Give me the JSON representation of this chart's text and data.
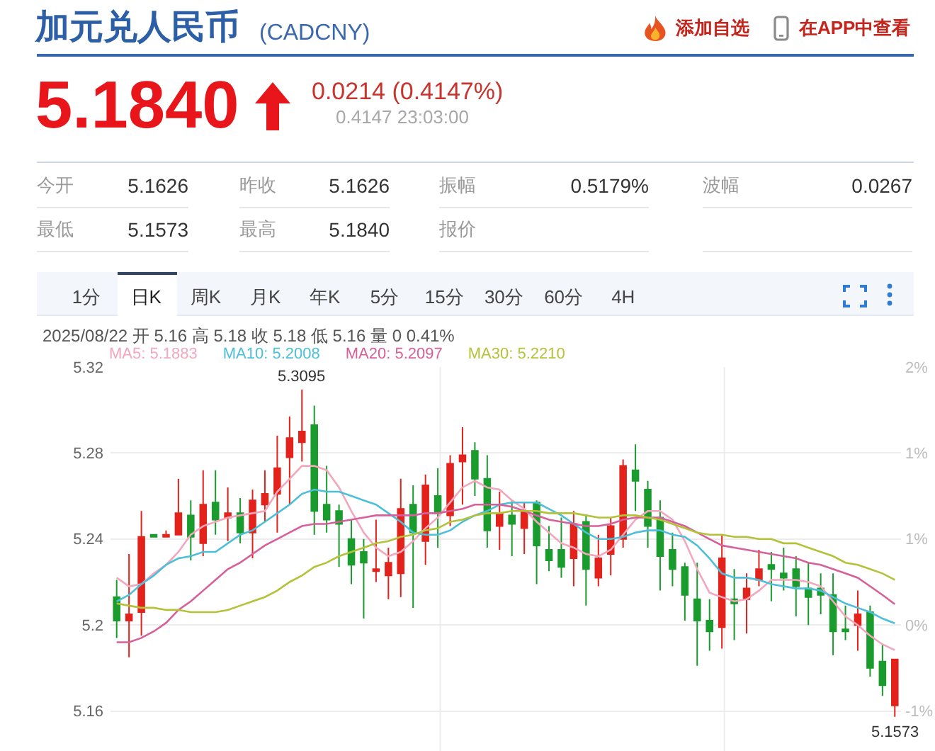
{
  "chart_data": [
    {
      "type": "other",
      "title": "加元兑人民币",
      "subtitle": "(CADCNY)",
      "annotations": [
        "添加自选",
        "在APP中查看",
        "5.1840",
        "0.0214 (0.4147%)",
        "0.4147 23:03:00",
        "今开",
        "5.1626",
        "昨收",
        "5.1626",
        "振幅",
        "0.5179%",
        "波幅",
        "0.0267",
        "最低",
        "5.1573",
        "最高",
        "5.1840",
        "报价",
        "1分",
        "日K",
        "周K",
        "月K",
        "年K",
        "5分",
        "15分",
        "30分",
        "60分",
        "4H"
      ]
    },
    {
      "type": "candlestick",
      "subtitle": "2025/08/22 开 5.16 高 5.18 收 5.18 低 5.16 量 0 0.41%",
      "categories": [
        null,
        null,
        null,
        null,
        null,
        null,
        null,
        null,
        null,
        null,
        null,
        null,
        null,
        null,
        null,
        null,
        null,
        null,
        null,
        null,
        null,
        null,
        null,
        null,
        null,
        null,
        null,
        null,
        null,
        null,
        null,
        null,
        null,
        null,
        null,
        null,
        null,
        null,
        null,
        null,
        null,
        null,
        null,
        null,
        null,
        null,
        null,
        null,
        null,
        null,
        null,
        null,
        null,
        null,
        null,
        null,
        null,
        null,
        null,
        null,
        null,
        null,
        null,
        null
      ],
      "ohlc": [
        [
          5.213,
          5.221,
          5.194,
          5.202
        ],
        [
          5.202,
          5.233,
          5.185,
          5.205
        ],
        [
          5.206,
          5.253,
          5.195,
          5.241
        ],
        [
          5.242,
          5.242,
          5.241,
          5.241
        ],
        [
          5.241,
          5.244,
          5.241,
          5.242
        ],
        [
          5.242,
          5.268,
          5.242,
          5.252
        ],
        [
          5.251,
          5.258,
          5.23,
          5.241
        ],
        [
          5.238,
          5.272,
          5.232,
          5.256
        ],
        [
          5.257,
          5.272,
          5.242,
          5.249
        ],
        [
          5.25,
          5.264,
          5.239,
          5.252
        ],
        [
          5.252,
          5.259,
          5.238,
          5.243
        ],
        [
          5.243,
          5.263,
          5.231,
          5.258
        ],
        [
          5.256,
          5.272,
          5.248,
          5.261
        ],
        [
          5.261,
          5.288,
          5.243,
          5.273
        ],
        [
          5.278,
          5.297,
          5.256,
          5.287
        ],
        [
          5.285,
          5.3095,
          5.276,
          5.29
        ],
        [
          5.293,
          5.302,
          5.242,
          5.253
        ],
        [
          5.256,
          5.274,
          5.243,
          5.249
        ],
        [
          5.253,
          5.256,
          5.227,
          5.247
        ],
        [
          5.24,
          5.249,
          5.219,
          5.228
        ],
        [
          5.234,
          5.24,
          5.203,
          5.229
        ],
        [
          5.225,
          5.249,
          5.22,
          5.226
        ],
        [
          5.223,
          5.236,
          5.212,
          5.229
        ],
        [
          5.224,
          5.268,
          5.213,
          5.254
        ],
        [
          5.256,
          5.265,
          5.208,
          5.243
        ],
        [
          5.239,
          5.27,
          5.228,
          5.265
        ],
        [
          5.26,
          5.273,
          5.236,
          5.252
        ],
        [
          5.251,
          5.279,
          5.246,
          5.275
        ],
        [
          5.276,
          5.292,
          5.256,
          5.279
        ],
        [
          5.281,
          5.285,
          5.26,
          5.268
        ],
        [
          5.268,
          5.279,
          5.236,
          5.244
        ],
        [
          5.246,
          5.262,
          5.235,
          5.252
        ],
        [
          5.251,
          5.258,
          5.232,
          5.247
        ],
        [
          5.245,
          5.257,
          5.233,
          5.253
        ],
        [
          5.257,
          5.258,
          5.219,
          5.237
        ],
        [
          5.235,
          5.246,
          5.225,
          5.23
        ],
        [
          5.235,
          5.25,
          5.222,
          5.227
        ],
        [
          5.231,
          5.253,
          5.218,
          5.247
        ],
        [
          5.248,
          5.251,
          5.209,
          5.226
        ],
        [
          5.222,
          5.242,
          5.218,
          5.231
        ],
        [
          5.233,
          5.25,
          5.223,
          5.246
        ],
        [
          5.24,
          5.277,
          5.236,
          5.274
        ],
        [
          5.272,
          5.284,
          5.253,
          5.267
        ],
        [
          5.263,
          5.267,
          5.236,
          5.246
        ],
        [
          5.25,
          5.258,
          5.216,
          5.232
        ],
        [
          5.235,
          5.243,
          5.218,
          5.226
        ],
        [
          5.227,
          5.229,
          5.202,
          5.214
        ],
        [
          5.212,
          5.229,
          5.181,
          5.202
        ],
        [
          5.202,
          5.212,
          5.188,
          5.197
        ],
        [
          5.199,
          5.242,
          5.189,
          5.231
        ],
        [
          5.212,
          5.226,
          5.193,
          5.21
        ],
        [
          5.212,
          5.224,
          5.196,
          5.217
        ],
        [
          5.221,
          5.235,
          5.218,
          5.226
        ],
        [
          5.228,
          5.234,
          5.211,
          5.226
        ],
        [
          5.224,
          5.236,
          5.216,
          5.222
        ],
        [
          5.226,
          5.232,
          5.204,
          5.218
        ],
        [
          5.217,
          5.229,
          5.2,
          5.213
        ],
        [
          5.217,
          5.224,
          5.205,
          5.214
        ],
        [
          5.214,
          5.224,
          5.186,
          5.197
        ],
        [
          5.198,
          5.209,
          5.193,
          5.197
        ],
        [
          5.2,
          5.216,
          5.188,
          5.205
        ],
        [
          5.206,
          5.209,
          5.176,
          5.18
        ],
        [
          5.183,
          5.191,
          5.167,
          5.172
        ],
        [
          5.1626,
          5.184,
          5.1573,
          5.184
        ]
      ],
      "colors": [
        "#199c2d",
        "#e3221b",
        "#e3221b",
        "#199c2d",
        "#e3221b",
        "#e3221b",
        "#199c2d",
        "#e3221b",
        "#199c2d",
        "#e3221b",
        "#199c2d",
        "#e3221b",
        "#e3221b",
        "#e3221b",
        "#e3221b",
        "#e3221b",
        "#199c2d",
        "#199c2d",
        "#199c2d",
        "#199c2d",
        "#199c2d",
        "#e3221b",
        "#e3221b",
        "#e3221b",
        "#199c2d",
        "#e3221b",
        "#199c2d",
        "#e3221b",
        "#e3221b",
        "#199c2d",
        "#199c2d",
        "#e3221b",
        "#199c2d",
        "#e3221b",
        "#199c2d",
        "#199c2d",
        "#199c2d",
        "#e3221b",
        "#199c2d",
        "#e3221b",
        "#e3221b",
        "#e3221b",
        "#199c2d",
        "#199c2d",
        "#199c2d",
        "#199c2d",
        "#199c2d",
        "#199c2d",
        "#199c2d",
        "#e3221b",
        "#199c2d",
        "#e3221b",
        "#e3221b",
        "#199c2d",
        "#199c2d",
        "#199c2d",
        "#199c2d",
        "#199c2d",
        "#199c2d",
        "#199c2d",
        "#e3221b",
        "#199c2d",
        "#199c2d",
        "#e3221b"
      ],
      "series": [
        {
          "name": "MA5: 5.1883",
          "type": "line",
          "color": "#f2a7bd",
          "values": [
            5.222,
            5.218,
            5.219,
            5.224,
            5.228,
            5.234,
            5.242,
            5.246,
            5.248,
            5.25,
            5.251,
            5.252,
            5.253,
            5.262,
            5.268,
            5.274,
            5.274,
            5.272,
            5.264,
            5.253,
            5.243,
            5.236,
            5.232,
            5.234,
            5.239,
            5.245,
            5.25,
            5.257,
            5.264,
            5.267,
            5.264,
            5.263,
            5.258,
            5.254,
            5.248,
            5.243,
            5.238,
            5.236,
            5.233,
            5.232,
            5.235,
            5.242,
            5.249,
            5.253,
            5.253,
            5.249,
            5.239,
            5.226,
            5.215,
            5.213,
            5.211,
            5.212,
            5.216,
            5.221,
            5.221,
            5.221,
            5.22,
            5.218,
            5.211,
            5.204,
            5.2,
            5.195,
            5.191,
            5.1883
          ]
        },
        {
          "name": "MA10: 5.2008",
          "type": "line",
          "color": "#4dbfd8",
          "values": [
            5.211,
            5.214,
            5.219,
            5.223,
            5.228,
            5.231,
            5.232,
            5.234,
            5.234,
            5.238,
            5.242,
            5.244,
            5.248,
            5.252,
            5.256,
            5.261,
            5.263,
            5.262,
            5.262,
            5.26,
            5.258,
            5.256,
            5.252,
            5.248,
            5.243,
            5.242,
            5.242,
            5.244,
            5.248,
            5.251,
            5.253,
            5.256,
            5.257,
            5.257,
            5.257,
            5.254,
            5.251,
            5.247,
            5.243,
            5.24,
            5.24,
            5.241,
            5.243,
            5.244,
            5.244,
            5.242,
            5.241,
            5.237,
            5.231,
            5.224,
            5.222,
            5.222,
            5.221,
            5.219,
            5.218,
            5.217,
            5.217,
            5.216,
            5.213,
            5.21,
            5.208,
            5.206,
            5.203,
            5.2008
          ]
        },
        {
          "name": "MA20: 5.2097",
          "type": "line",
          "color": "#d6609a",
          "values": [
            5.192,
            5.192,
            5.194,
            5.197,
            5.201,
            5.207,
            5.211,
            5.216,
            5.221,
            5.226,
            5.229,
            5.233,
            5.237,
            5.24,
            5.243,
            5.246,
            5.247,
            5.247,
            5.248,
            5.249,
            5.25,
            5.251,
            5.251,
            5.251,
            5.251,
            5.252,
            5.252,
            5.253,
            5.254,
            5.256,
            5.256,
            5.256,
            5.255,
            5.253,
            5.251,
            5.249,
            5.248,
            5.247,
            5.246,
            5.246,
            5.247,
            5.249,
            5.25,
            5.25,
            5.25,
            5.248,
            5.246,
            5.243,
            5.24,
            5.237,
            5.236,
            5.235,
            5.234,
            5.233,
            5.232,
            5.231,
            5.229,
            5.228,
            5.226,
            5.224,
            5.222,
            5.218,
            5.214,
            5.2097
          ]
        },
        {
          "name": "MA30: 5.2210",
          "type": "line",
          "color": "#b4c23a",
          "values": [
            5.21,
            5.209,
            5.208,
            5.208,
            5.207,
            5.207,
            5.206,
            5.206,
            5.206,
            5.207,
            5.209,
            5.211,
            5.213,
            5.216,
            5.22,
            5.223,
            5.227,
            5.229,
            5.232,
            5.234,
            5.236,
            5.238,
            5.239,
            5.241,
            5.242,
            5.244,
            5.245,
            5.248,
            5.249,
            5.251,
            5.252,
            5.252,
            5.253,
            5.253,
            5.253,
            5.252,
            5.252,
            5.252,
            5.251,
            5.25,
            5.25,
            5.251,
            5.251,
            5.25,
            5.249,
            5.247,
            5.245,
            5.243,
            5.242,
            5.242,
            5.241,
            5.241,
            5.24,
            5.24,
            5.238,
            5.238,
            5.236,
            5.234,
            5.232,
            5.229,
            5.228,
            5.226,
            5.224,
            5.221
          ]
        }
      ],
      "ylim": [
        5.1414,
        5.32
      ],
      "yticks": [
        5.32,
        5.28,
        5.24,
        5.2,
        5.16
      ],
      "y2lim": [
        -1.2883,
        2.1407
      ],
      "y2ticks": [
        {
          "value": 2.1407,
          "label": "2%"
        },
        {
          "value": 1.3727,
          "label": "1%"
        },
        {
          "value": 0.6048,
          "label": "1%"
        },
        {
          "value": -0.1632,
          "label": "0%"
        },
        {
          "value": -0.9312,
          "label": "-1%"
        }
      ],
      "grid": true,
      "legend": "top left",
      "annotations": [
        {
          "text": "5.3095",
          "y": 5.3095
        },
        {
          "text": "5.1573",
          "y": 5.1573
        }
      ]
    }
  ]
}
